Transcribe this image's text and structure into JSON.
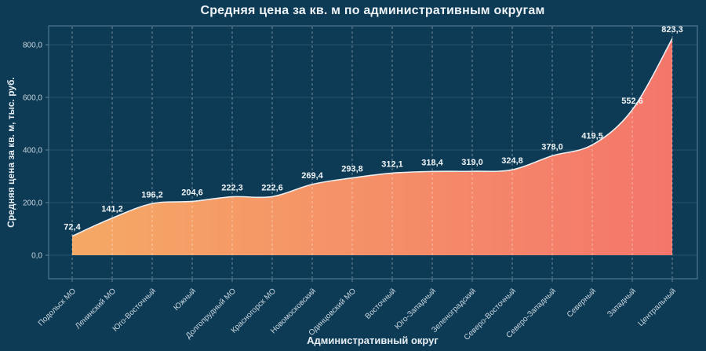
{
  "chart_data": {
    "type": "area",
    "title": "Средняя цена за кв. м по административным округам",
    "xlabel": "Административный округ",
    "ylabel": "Средняя цена за кв. м, тыс. руб.",
    "categories": [
      "Подольск МО",
      "Ленинский МО",
      "Юго-Восточный",
      "Южный",
      "Долгопрудный МО",
      "Красногорск МО",
      "Новомосковский",
      "Одинцовский МО",
      "Восточный",
      "Юго-Западный",
      "Зеленоградский",
      "Северо-Восточный",
      "Северо-Западный",
      "Северный",
      "Западный",
      "Центральный"
    ],
    "values": [
      72.4,
      141.2,
      196.2,
      204.6,
      222.3,
      222.6,
      269.4,
      293.8,
      312.1,
      318.4,
      319.0,
      324.8,
      378.0,
      419.5,
      552.6,
      823.3
    ],
    "point_labels": [
      "72,4",
      "141,2",
      "196,2",
      "204,6",
      "222,3",
      "222,6",
      "269,4",
      "293,8",
      "312,1",
      "318,4",
      "319,0",
      "324,8",
      "378,0",
      "419,5",
      "552,6",
      "823,3"
    ],
    "y_ticks": [
      0,
      200,
      400,
      600,
      800
    ],
    "y_tick_labels": [
      "0,0",
      "200,0",
      "400,0",
      "600,0",
      "800,0"
    ],
    "ylim": [
      -90,
      872
    ],
    "legend": "none",
    "grid": {
      "horizontal": "faint-solid",
      "vertical": "dashed-white-per-category"
    },
    "colors": {
      "background": "#0d3a54",
      "plot_border": "#5d849b",
      "area_gradient_start": "#f5a965",
      "area_gradient_end": "#f4766b",
      "line": "#e9eef2",
      "label_text": "#f0f5f8",
      "tick_text": "#c9d7e0",
      "gridline": "rgba(173,203,224,0.16)",
      "dashed_guide": "rgba(255,255,255,0.42)"
    }
  }
}
